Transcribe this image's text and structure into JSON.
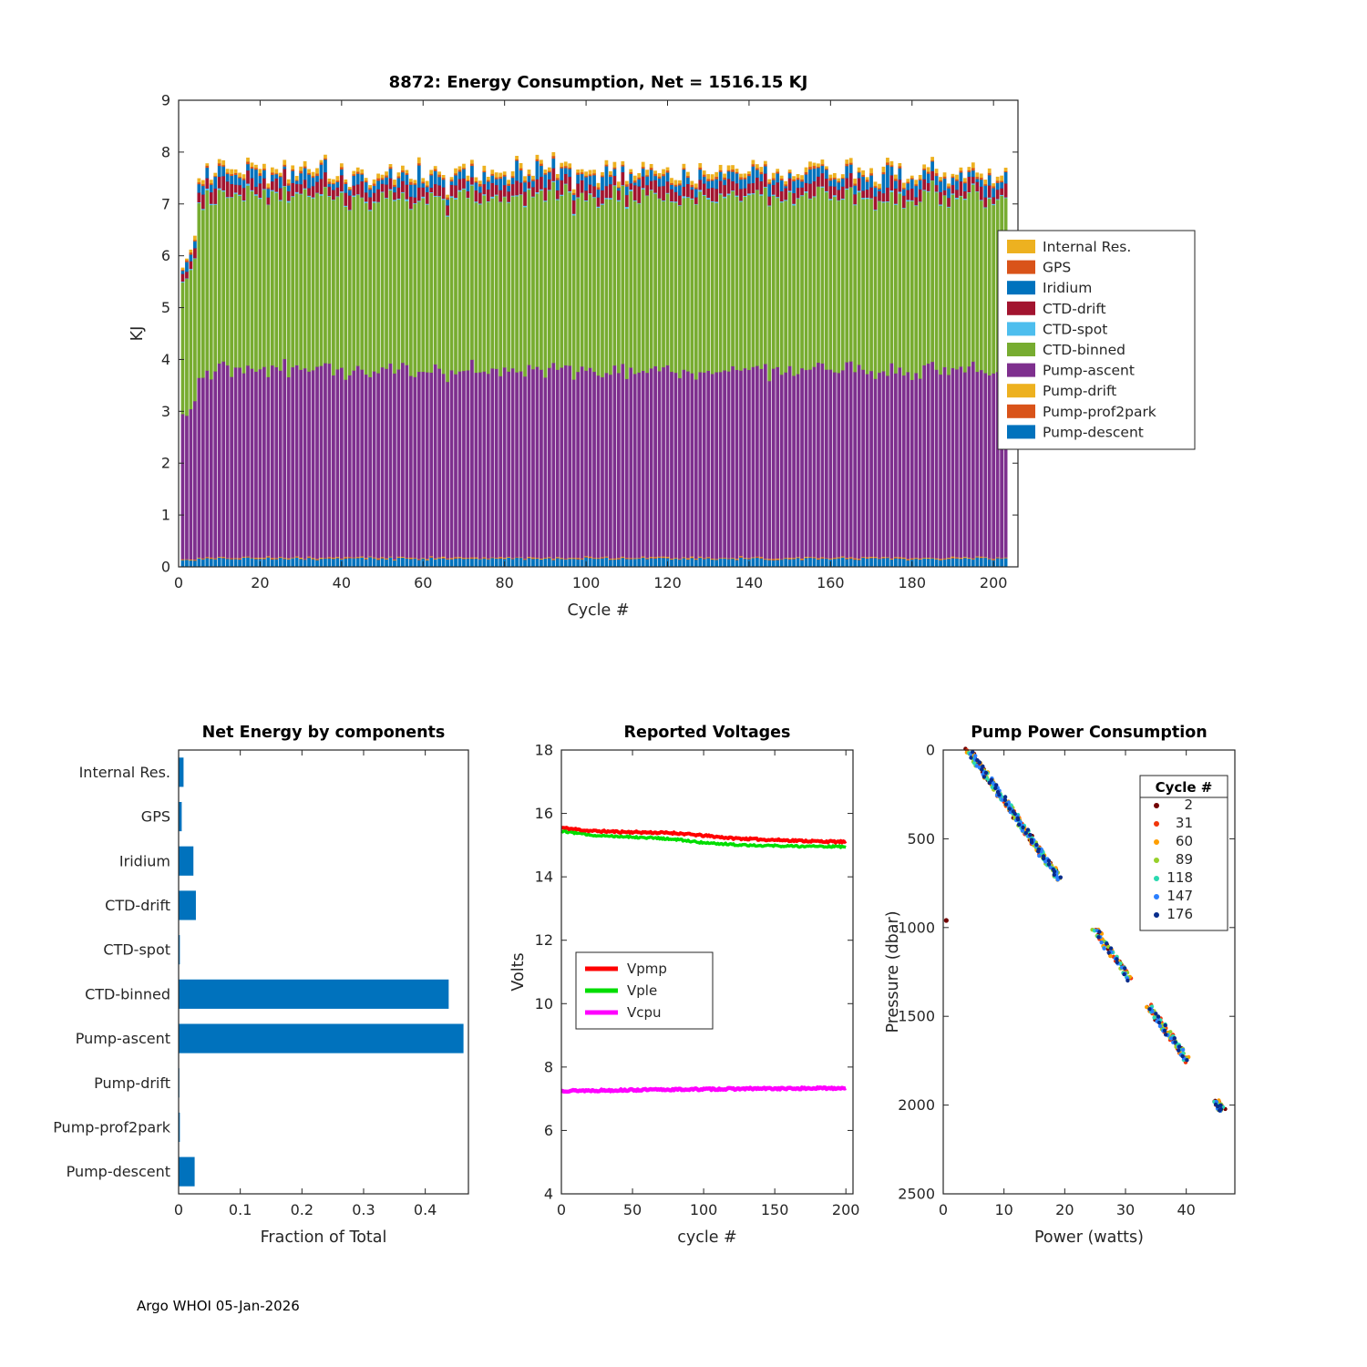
{
  "page": {
    "footer": "Argo WHOI 05-Jan-2026",
    "background": "#FFFFFF",
    "axis_color": "#262626"
  },
  "chart_data": [
    {
      "id": "energy",
      "type": "bar",
      "stacked": true,
      "title": "8872: Energy Consumption,  Net = 1516.15 KJ",
      "net_kj": 1516.15,
      "float_id": "8872",
      "xlabel": "Cycle #",
      "ylabel": "KJ",
      "xlim": [
        0,
        206
      ],
      "ylim": [
        0,
        9
      ],
      "xticks": [
        0,
        20,
        40,
        60,
        80,
        100,
        120,
        140,
        160,
        180,
        200
      ],
      "yticks": [
        0,
        1,
        2,
        3,
        4,
        5,
        6,
        7,
        8,
        9
      ],
      "n_cycles": 203,
      "startup_scales": [
        0.77,
        0.78,
        0.8,
        0.83
      ],
      "series_bottom_to_top": [
        {
          "name": "Pump-descent",
          "color": "#0072BD",
          "mean": 0.16,
          "sd": 0.015
        },
        {
          "name": "Pump-prof2park",
          "color": "#D95319",
          "mean": 0.012,
          "sd": 0.004
        },
        {
          "name": "Pump-drift",
          "color": "#EDB120",
          "mean": 0.01,
          "sd": 0.003
        },
        {
          "name": "Pump-ascent",
          "color": "#7E2F8E",
          "mean": 3.62,
          "sd": 0.09
        },
        {
          "name": "CTD-binned",
          "color": "#77AC30",
          "mean": 3.33,
          "sd": 0.07
        },
        {
          "name": "CTD-spot",
          "color": "#4DBEEE",
          "mean": 0.02,
          "sd": 0.008
        },
        {
          "name": "CTD-drift",
          "color": "#A2142F",
          "mean": 0.21,
          "sd": 0.05
        },
        {
          "name": "Iridium",
          "color": "#0072BD",
          "mean": 0.16,
          "sd": 0.05,
          "spike_prob": 0.08,
          "spike_add": 0.22
        },
        {
          "name": "GPS",
          "color": "#D95319",
          "mean": 0.035,
          "sd": 0.008
        },
        {
          "name": "Internal Res.",
          "color": "#EDB120",
          "mean": 0.07,
          "sd": 0.015
        }
      ],
      "legend_top_to_bottom": [
        "Internal Res.",
        "GPS",
        "Iridium",
        "CTD-drift",
        "CTD-spot",
        "CTD-binned",
        "Pump-ascent",
        "Pump-drift",
        "Pump-prof2park",
        "Pump-descent"
      ]
    },
    {
      "id": "net_energy",
      "type": "bar",
      "orientation": "horizontal",
      "title": "Net Energy by components",
      "xlabel": "Fraction of Total",
      "categories": [
        "Internal Res.",
        "GPS",
        "Iridium",
        "CTD-drift",
        "CTD-spot",
        "CTD-binned",
        "Pump-ascent",
        "Pump-drift",
        "Pump-prof2park",
        "Pump-descent"
      ],
      "values": [
        0.008,
        0.005,
        0.024,
        0.028,
        0.002,
        0.438,
        0.462,
        0.001,
        0.002,
        0.026
      ],
      "xlim": [
        0,
        0.47
      ],
      "xticks": [
        0,
        0.1,
        0.2,
        0.3,
        0.4
      ],
      "bar_color": "#0072BD"
    },
    {
      "id": "voltages",
      "type": "line",
      "title": "Reported Voltages",
      "xlabel": "cycle #",
      "ylabel": "Volts",
      "xlim": [
        0,
        205
      ],
      "ylim": [
        4,
        18
      ],
      "xticks": [
        0,
        50,
        100,
        150,
        200
      ],
      "yticks": [
        4,
        6,
        8,
        10,
        12,
        14,
        16,
        18
      ],
      "x": [
        0,
        20,
        40,
        60,
        80,
        100,
        120,
        140,
        160,
        180,
        200
      ],
      "series": [
        {
          "name": "Vpmp",
          "color": "#FF0000",
          "width": 4,
          "seed": 11,
          "y": [
            15.55,
            15.45,
            15.42,
            15.4,
            15.38,
            15.3,
            15.22,
            15.18,
            15.15,
            15.12,
            15.1
          ]
        },
        {
          "name": "Vple",
          "color": "#00DD00",
          "width": 3.5,
          "seed": 12,
          "y": [
            15.45,
            15.32,
            15.28,
            15.24,
            15.18,
            15.08,
            15.02,
            14.99,
            14.97,
            14.96,
            14.95
          ]
        },
        {
          "name": "Vcpu",
          "color": "#FF00FF",
          "width": 4.5,
          "seed": 13,
          "y": [
            7.25,
            7.26,
            7.27,
            7.28,
            7.29,
            7.3,
            7.31,
            7.32,
            7.32,
            7.33,
            7.34
          ]
        }
      ]
    },
    {
      "id": "pump_power",
      "type": "scatter",
      "title": "Pump Power Consumption",
      "xlabel": "Power (watts)",
      "ylabel": "Pressure (dbar)",
      "xlim": [
        0,
        48
      ],
      "ylim": [
        0,
        2500
      ],
      "y_direction": "down",
      "xticks": [
        0,
        10,
        20,
        30,
        40
      ],
      "yticks": [
        0,
        500,
        1000,
        1500,
        2000,
        2500
      ],
      "legend_title": "Cycle #",
      "trend": {
        "power_at_surface": 4.2,
        "power_at_2000": 45.3
      },
      "pressure_bands": [
        {
          "range": [
            0,
            735
          ],
          "step": 18
        },
        {
          "range": [
            1005,
            1300
          ],
          "step": 30
        },
        {
          "range": [
            1440,
            1755
          ],
          "step": 24
        },
        {
          "range": [
            1975,
            2030
          ],
          "step": 9
        }
      ],
      "power_jitter": 0.55,
      "pressure_jitter": 8,
      "outliers": [
        {
          "cycle": "2",
          "power": 0.5,
          "pressure": 960
        }
      ],
      "cycles": [
        {
          "name": "2",
          "color": "#720000"
        },
        {
          "name": "31",
          "color": "#F1360B"
        },
        {
          "name": "60",
          "color": "#FF9E00"
        },
        {
          "name": "89",
          "color": "#97D02B"
        },
        {
          "name": "118",
          "color": "#2BD9B0"
        },
        {
          "name": "147",
          "color": "#2A7FFF"
        },
        {
          "name": "176",
          "color": "#082C8C"
        }
      ]
    }
  ]
}
